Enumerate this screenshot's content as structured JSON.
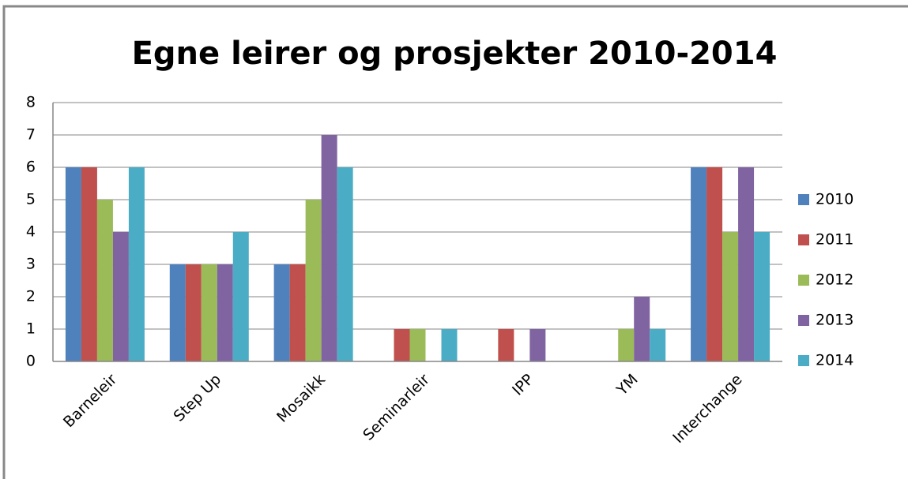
{
  "chart_data": {
    "type": "bar",
    "title": "Egne leirer og prosjekter 2010-2014",
    "categories": [
      "Barneleir",
      "Step Up",
      "Mosaikk",
      "Seminarleir",
      "IPP",
      "YM",
      "Interchange"
    ],
    "series": [
      {
        "name": "2010",
        "color": "#4f81bd",
        "values": [
          6,
          3,
          3,
          0,
          0,
          0,
          6
        ]
      },
      {
        "name": "2011",
        "color": "#c0504d",
        "values": [
          6,
          3,
          3,
          1,
          1,
          0,
          6
        ]
      },
      {
        "name": "2012",
        "color": "#9bbb59",
        "values": [
          5,
          3,
          5,
          1,
          0,
          1,
          4
        ]
      },
      {
        "name": "2013",
        "color": "#8064a2",
        "values": [
          4,
          3,
          7,
          0,
          1,
          2,
          6
        ]
      },
      {
        "name": "2014",
        "color": "#4bacc6",
        "values": [
          6,
          4,
          6,
          1,
          0,
          1,
          4
        ]
      }
    ],
    "ylim": [
      0,
      8
    ],
    "yticks": [
      0,
      1,
      2,
      3,
      4,
      5,
      6,
      7,
      8
    ],
    "grid": true,
    "legend": "right"
  }
}
